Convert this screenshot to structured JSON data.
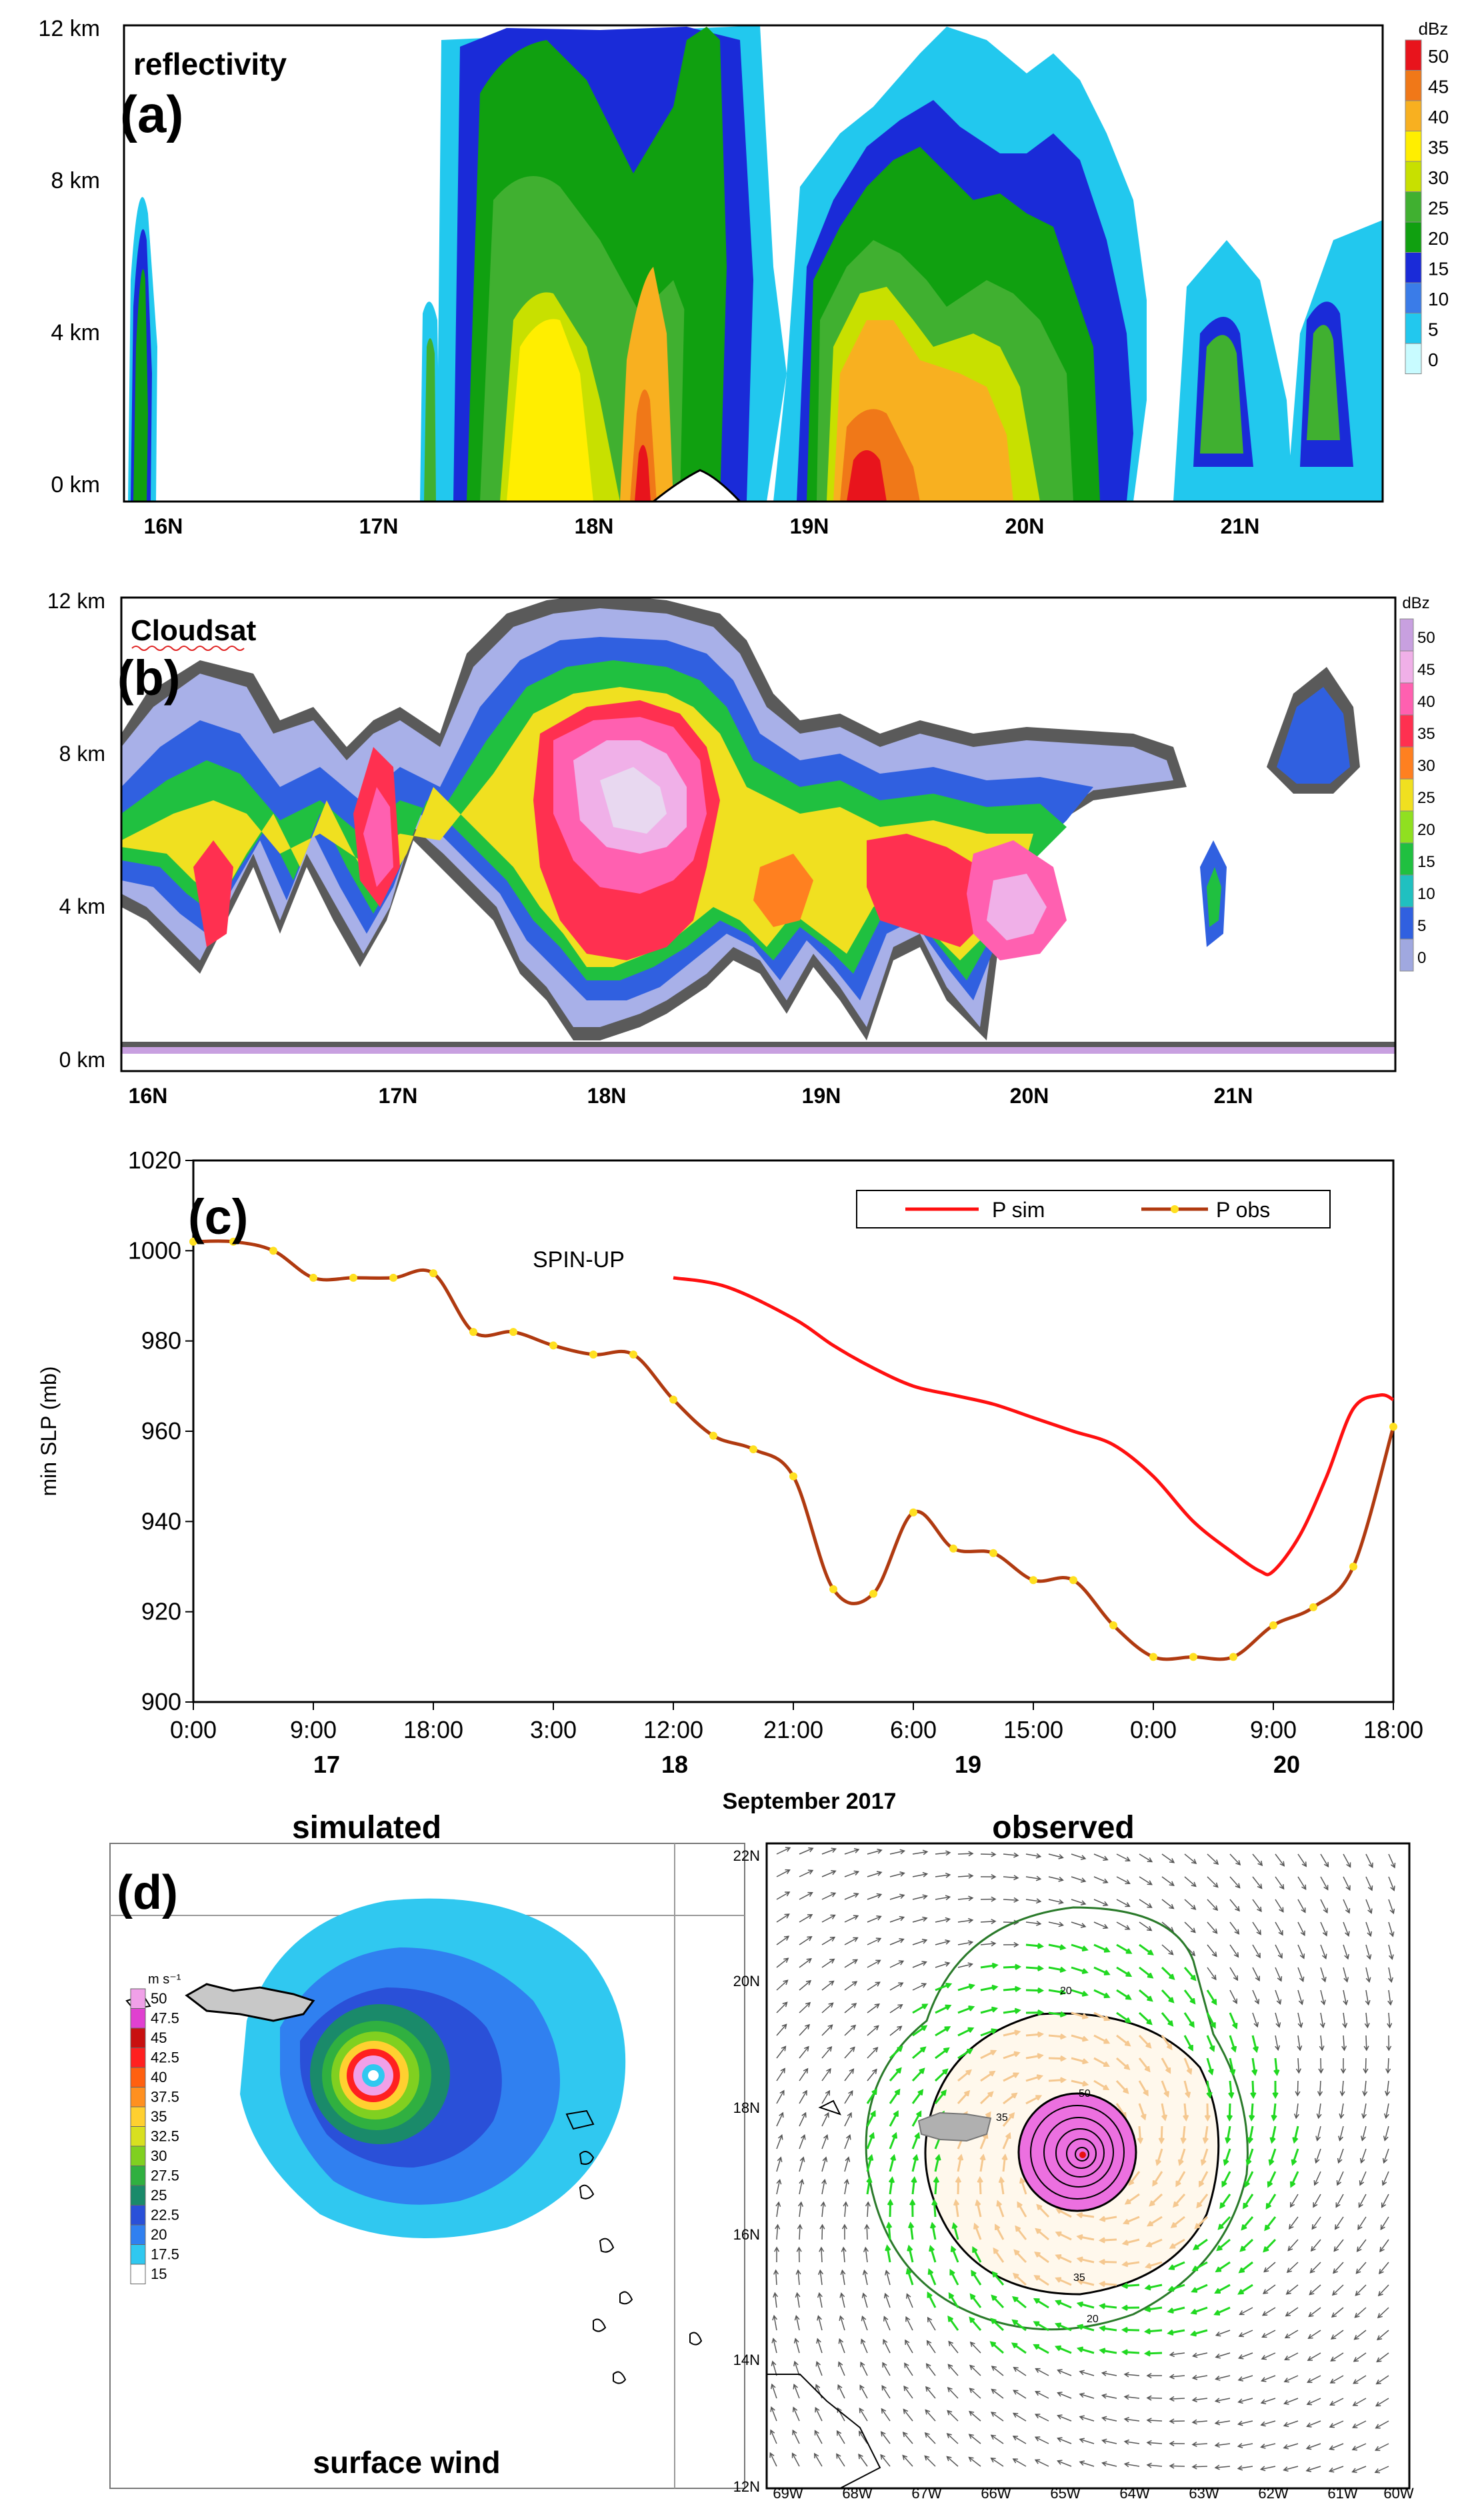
{
  "panel_a": {
    "letter": "(a)",
    "title": "reflectivity",
    "unit": "dBz",
    "y_ticks": [
      "12 km",
      "8 km",
      "4 km",
      "0 km"
    ],
    "x_ticks": [
      "16N",
      "17N",
      "18N",
      "19N",
      "20N",
      "21N"
    ],
    "colorbar_labels": [
      "50",
      "45",
      "40",
      "35",
      "30",
      "25",
      "20",
      "15",
      "10",
      "5",
      "0"
    ],
    "colorbar_colors": [
      "#e8141c",
      "#f07818",
      "#f8b020",
      "#ffee00",
      "#c8e000",
      "#40b030",
      "#10a010",
      "#1a2bd8",
      "#3a7ce8",
      "#22c8ee",
      "#c8fbff"
    ]
  },
  "panel_b": {
    "letter": "(b)",
    "title": "Cloudsat",
    "unit": "dBz",
    "y_ticks": [
      "12 km",
      "8 km",
      "4 km",
      "0 km"
    ],
    "x_ticks": [
      "16N",
      "17N",
      "18N",
      "19N",
      "20N",
      "21N"
    ],
    "colorbar_labels": [
      "50",
      "45",
      "40",
      "35",
      "30",
      "25",
      "20",
      "15",
      "10",
      "5",
      "0"
    ],
    "colorbar_colors": [
      "#c8a0e0",
      "#f0b0e8",
      "#ff60b0",
      "#ff3050",
      "#ff8020",
      "#f0e020",
      "#90e020",
      "#20c040",
      "#20c0c0",
      "#3060e0",
      "#a0a8e0"
    ]
  },
  "panel_c": {
    "letter": "(c)",
    "annotation": "SPIN-UP",
    "ylabel": "min SLP (mb)",
    "xlabel": "September 2017",
    "legend": [
      "P sim",
      "P obs"
    ],
    "series_colors": [
      "#ff1010",
      "#b03a10"
    ],
    "marker_color": "#ffe020",
    "day_labels": [
      "17",
      "18",
      "19",
      "20"
    ]
  },
  "chart_data": {
    "type": "line",
    "title": "",
    "xlabel": "September 2017",
    "ylabel": "min SLP (mb)",
    "ylim": [
      900,
      1020
    ],
    "y_ticks": [
      900,
      920,
      940,
      960,
      980,
      1000,
      1020
    ],
    "x_hours": [
      0,
      9,
      18,
      27,
      36,
      45,
      54,
      63,
      72,
      81,
      90
    ],
    "x_tick_labels": [
      "0:00",
      "9:00",
      "18:00",
      "3:00",
      "12:00",
      "21:00",
      "6:00",
      "15:00",
      "0:00",
      "9:00",
      "18:00"
    ],
    "xlim": [
      0,
      90
    ],
    "series": [
      {
        "name": "P sim",
        "x": [
          36,
          40,
          45,
          48,
          51,
          54,
          57,
          60,
          63,
          66,
          69,
          72,
          75,
          78,
          80,
          81,
          83,
          85,
          87,
          89,
          90
        ],
        "values": [
          994,
          992,
          985,
          979,
          974,
          970,
          968,
          966,
          963,
          960,
          957,
          950,
          940,
          933,
          929,
          929,
          937,
          950,
          965,
          968,
          967
        ]
      },
      {
        "name": "P obs",
        "x": [
          0,
          3,
          6,
          9,
          12,
          15,
          18,
          21,
          24,
          27,
          30,
          33,
          36,
          39,
          42,
          45,
          48,
          51,
          54,
          57,
          60,
          63,
          66,
          69,
          72,
          75,
          78,
          81,
          84,
          87,
          90
        ],
        "values": [
          1002,
          1002,
          1000,
          994,
          994,
          994,
          995,
          982,
          982,
          979,
          977,
          977,
          967,
          959,
          956,
          950,
          925,
          924,
          942,
          934,
          933,
          927,
          927,
          917,
          910,
          910,
          910,
          917,
          921,
          930,
          961
        ]
      }
    ]
  },
  "panel_d": {
    "letter": "(d)",
    "title_left": "simulated",
    "title_right": "observed",
    "caption_left": "surface wind",
    "wind_unit": "m s⁻¹",
    "wind_labels": [
      "50",
      "47.5",
      "45",
      "42.5",
      "40",
      "37.5",
      "35",
      "32.5",
      "30",
      "27.5",
      "25",
      "22.5",
      "20",
      "17.5",
      "15"
    ],
    "wind_colors": [
      "#f0a0e8",
      "#e040d0",
      "#c81010",
      "#ff2020",
      "#ff6010",
      "#ff9020",
      "#ffd030",
      "#d8e020",
      "#80d020",
      "#30b040",
      "#1a8a6a",
      "#2a50d8",
      "#3080f0",
      "#30c8f0",
      "#ffffff"
    ],
    "lat_labels": [
      "22N",
      "20N",
      "18N",
      "16N",
      "14N",
      "12N"
    ],
    "lon_labels": [
      "69W",
      "68W",
      "67W",
      "66W",
      "65W",
      "64W",
      "63W",
      "62W",
      "61W",
      "60W"
    ],
    "contour_labels": [
      "20",
      "35",
      "50",
      "35",
      "20"
    ]
  }
}
